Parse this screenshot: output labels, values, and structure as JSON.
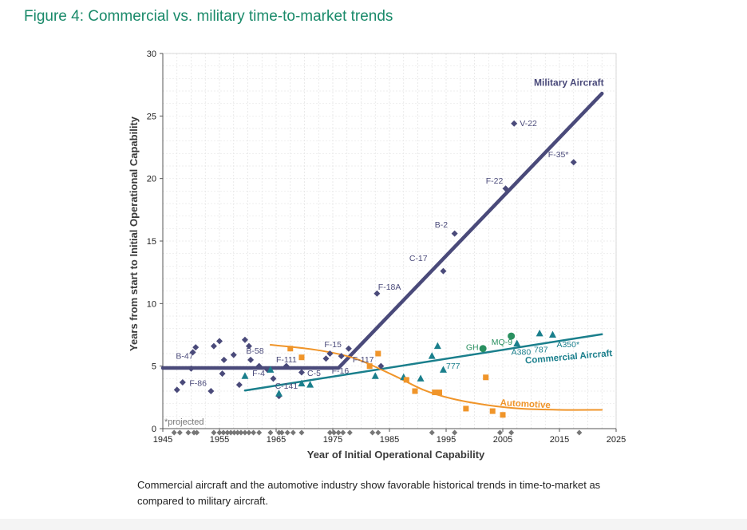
{
  "figure_title": "Figure 4: Commercial vs. military time-to-market trends",
  "caption": "Commercial aircraft and the automotive industry show favorable historical trends in time-to-market as compared to military aircraft.",
  "colors": {
    "military": "#4a4a7a",
    "commercial": "#1a7f8c",
    "automotive": "#f0952a",
    "green": "#2a9060",
    "projected": "#777777",
    "title": "#1a8a6a"
  },
  "chart_data": {
    "type": "scatter",
    "xlabel": "Year of Initial Operational Capability",
    "ylabel": "Years from start to Initial Operational Capability",
    "xlim": [
      1945,
      2025
    ],
    "ylim": [
      0,
      30
    ],
    "xticks": [
      1945,
      1955,
      1965,
      1975,
      1985,
      1995,
      2005,
      2015,
      2025
    ],
    "yticks": [
      0,
      5,
      10,
      15,
      20,
      25,
      30
    ],
    "grid": true,
    "note": "*projected",
    "series": [
      {
        "name": "Military Aircraft",
        "marker": "diamond",
        "points": [
          [
            1947.5,
            3.1
          ],
          [
            1948.5,
            3.7
          ],
          [
            1950,
            4.8
          ],
          [
            1950.3,
            6.1
          ],
          [
            1950.8,
            6.5
          ],
          [
            1953.5,
            3.0
          ],
          [
            1954,
            6.6
          ],
          [
            1955,
            7.0
          ],
          [
            1955.5,
            4.4
          ],
          [
            1955.8,
            5.5
          ],
          [
            1957.5,
            5.9
          ],
          [
            1958.5,
            3.5
          ],
          [
            1959.5,
            7.1
          ],
          [
            1960.2,
            6.6
          ],
          [
            1960.5,
            5.5
          ],
          [
            1962,
            5.0
          ],
          [
            1963.5,
            4.7
          ],
          [
            1964.5,
            4.0
          ],
          [
            1965.5,
            2.6
          ],
          [
            1966.8,
            5.0
          ],
          [
            1969.5,
            4.5
          ],
          [
            1973.8,
            5.6
          ],
          [
            1974.5,
            6.0
          ],
          [
            1976.5,
            5.8
          ],
          [
            1977.8,
            6.4
          ],
          [
            1982.8,
            10.8
          ],
          [
            1983.5,
            5.0
          ],
          [
            1994.5,
            12.6
          ],
          [
            1996.5,
            15.6
          ],
          [
            2005.5,
            19.2
          ],
          [
            2007,
            24.4
          ],
          [
            2017.5,
            21.3
          ]
        ],
        "trend": [
          [
            1945,
            4.85
          ],
          [
            1976,
            4.85
          ],
          [
            2022.5,
            26.8
          ]
        ]
      },
      {
        "name": "Commercial Aircraft",
        "marker": "triangle",
        "points": [
          [
            1959.5,
            4.2
          ],
          [
            1964,
            4.7
          ],
          [
            1965.5,
            2.8
          ],
          [
            1969.5,
            3.6
          ],
          [
            1971,
            3.5
          ],
          [
            1982.5,
            4.2
          ],
          [
            1987.5,
            4.1
          ],
          [
            1990.5,
            4.0
          ],
          [
            1992.5,
            5.8
          ],
          [
            1993.5,
            6.6
          ],
          [
            1994.5,
            4.7
          ],
          [
            2007.5,
            6.8
          ],
          [
            2011.5,
            7.6
          ],
          [
            2013.8,
            7.5
          ]
        ],
        "trend": [
          [
            1959.5,
            3.05
          ],
          [
            2022.5,
            7.55
          ]
        ]
      },
      {
        "name": "Automotive",
        "marker": "square",
        "points": [
          [
            1967.5,
            6.4
          ],
          [
            1969.5,
            5.7
          ],
          [
            1981.5,
            5.0
          ],
          [
            1983,
            6.0
          ],
          [
            1988,
            3.9
          ],
          [
            1989.5,
            3.0
          ],
          [
            1993,
            2.9
          ],
          [
            1993.8,
            2.9
          ],
          [
            1998.5,
            1.6
          ],
          [
            2002,
            4.1
          ],
          [
            2003.2,
            1.4
          ],
          [
            2005,
            1.1
          ]
        ],
        "trend": [
          [
            1964,
            6.7
          ],
          [
            1972,
            6.3
          ],
          [
            1979,
            5.6
          ],
          [
            1986,
            4.2
          ],
          [
            1991,
            3.1
          ],
          [
            1996,
            2.4
          ],
          [
            2002,
            1.9
          ],
          [
            2008,
            1.6
          ],
          [
            2015,
            1.5
          ],
          [
            2022.5,
            1.5
          ]
        ]
      },
      {
        "name": "GH / MQ-9",
        "marker": "circle",
        "points": [
          [
            2001.5,
            6.4
          ],
          [
            2006.5,
            7.4
          ]
        ]
      }
    ],
    "projected_ticks": [
      1947,
      1948,
      1949.5,
      1950.5,
      1951,
      1954,
      1955,
      1955.7,
      1956.4,
      1957,
      1957.6,
      1958.2,
      1958.8,
      1959.5,
      1960.2,
      1961,
      1962,
      1964,
      1965.5,
      1966,
      1967,
      1968,
      1969.5,
      1974.5,
      1975.2,
      1976,
      1976.8,
      1978,
      1982,
      1983,
      1992.5,
      1996.5,
      2004.5,
      2006.5,
      2018.5
    ],
    "annotations": [
      {
        "text": "Military Aircraft",
        "x": 2010.5,
        "y": 27.4,
        "color": "military",
        "bold": true,
        "size": 12
      },
      {
        "text": "Commercial Aircraft",
        "x": 2009,
        "y": 5.2,
        "color": "commercial",
        "bold": true,
        "size": 11.5,
        "rotate": -5
      },
      {
        "text": "Automotive",
        "x": 2004.5,
        "y": 1.85,
        "color": "automotive",
        "bold": true,
        "size": 11.5,
        "rotate": 3
      },
      {
        "text": "V-22",
        "x": 2008,
        "y": 24.2,
        "color": "military"
      },
      {
        "text": "F-35*",
        "x": 2013,
        "y": 21.7,
        "color": "military"
      },
      {
        "text": "F-22",
        "x": 2002,
        "y": 19.6,
        "color": "military"
      },
      {
        "text": "B-2",
        "x": 1993,
        "y": 16.1,
        "color": "military"
      },
      {
        "text": "C-17",
        "x": 1988.5,
        "y": 13.4,
        "color": "military"
      },
      {
        "text": "F-18A",
        "x": 1983,
        "y": 11.1,
        "color": "military"
      },
      {
        "text": "F-15",
        "x": 1973.5,
        "y": 6.5,
        "color": "military"
      },
      {
        "text": "F-117",
        "x": 1978.5,
        "y": 5.3,
        "color": "military"
      },
      {
        "text": "F-16",
        "x": 1974.8,
        "y": 4.4,
        "color": "military"
      },
      {
        "text": "F-111",
        "x": 1965,
        "y": 5.3,
        "color": "military"
      },
      {
        "text": "C-5",
        "x": 1970.5,
        "y": 4.2,
        "color": "military"
      },
      {
        "text": "C-141",
        "x": 1964.8,
        "y": 3.2,
        "color": "military"
      },
      {
        "text": "F-4",
        "x": 1960.8,
        "y": 4.2,
        "color": "military"
      },
      {
        "text": "B-58",
        "x": 1959.7,
        "y": 6.0,
        "color": "military"
      },
      {
        "text": "B-47",
        "x": 1947.3,
        "y": 5.6,
        "color": "military"
      },
      {
        "text": "F-86",
        "x": 1949.7,
        "y": 3.4,
        "color": "military"
      },
      {
        "text": "777",
        "x": 1995,
        "y": 4.8,
        "color": "commercial"
      },
      {
        "text": "GH",
        "x": 1998.5,
        "y": 6.3,
        "color": "green"
      },
      {
        "text": "MQ-9",
        "x": 2003,
        "y": 6.7,
        "color": "green"
      },
      {
        "text": "A380",
        "x": 2006.5,
        "y": 5.9,
        "color": "commercial"
      },
      {
        "text": "787",
        "x": 2010.5,
        "y": 6.1,
        "color": "commercial"
      },
      {
        "text": "A350*",
        "x": 2014.5,
        "y": 6.5,
        "color": "commercial"
      }
    ]
  }
}
